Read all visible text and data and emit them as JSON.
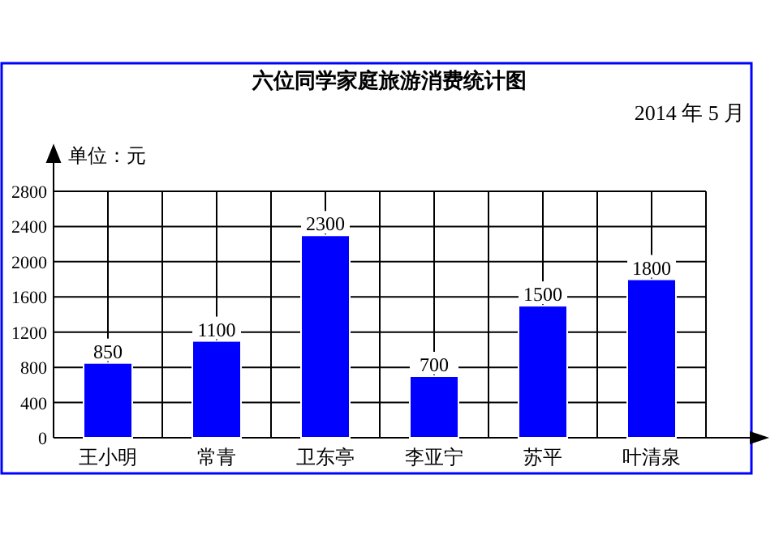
{
  "chart_data": {
    "type": "bar",
    "title": "六位同学家庭旅游消费统计图",
    "subtitle": "2014 年 5 月",
    "ylabel": "单位：元",
    "categories": [
      "王小明",
      "常青",
      "卫东亭",
      "李亚宁",
      "苏平",
      "叶清泉"
    ],
    "values": [
      850,
      1100,
      2300,
      700,
      1500,
      1800
    ],
    "color": "#0000ff",
    "ylim": [
      0,
      2800
    ],
    "yticks": [
      0,
      400,
      800,
      1200,
      1600,
      2000,
      2400,
      2800
    ],
    "grid": true,
    "data_labels": true
  }
}
